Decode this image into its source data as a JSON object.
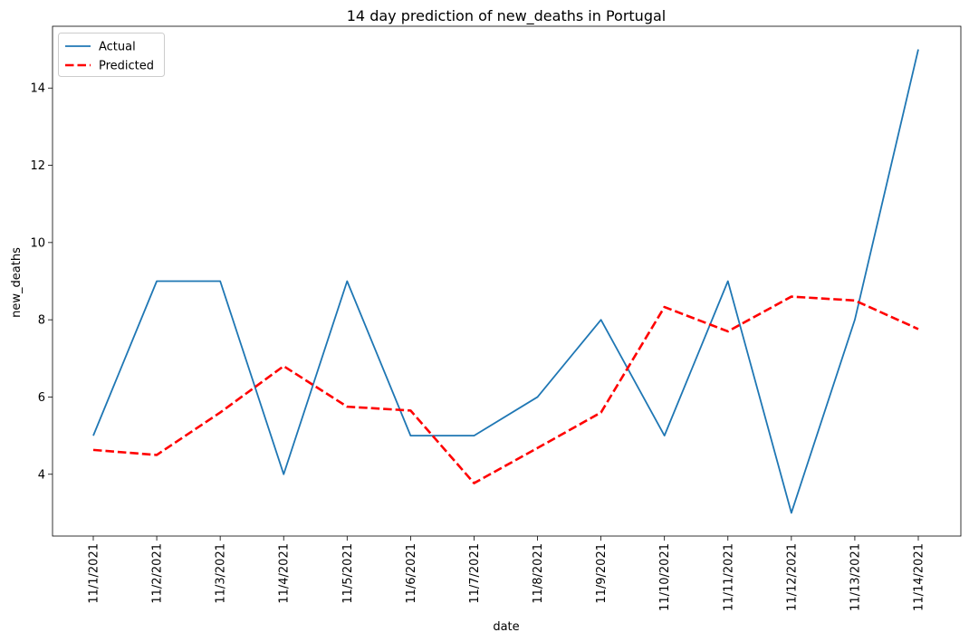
{
  "chart_data": {
    "type": "line",
    "title": "14 day prediction of new_deaths in Portugal",
    "xlabel": "date",
    "ylabel": "new_deaths",
    "categories": [
      "11/1/2021",
      "11/2/2021",
      "11/3/2021",
      "11/4/2021",
      "11/5/2021",
      "11/6/2021",
      "11/7/2021",
      "11/8/2021",
      "11/9/2021",
      "11/10/2021",
      "11/11/2021",
      "11/12/2021",
      "11/13/2021",
      "11/14/2021"
    ],
    "yticks": [
      4,
      6,
      8,
      10,
      12,
      14
    ],
    "ylim": [
      2.4,
      15.6
    ],
    "grid": false,
    "legend_position": "upper-left",
    "series": [
      {
        "name": "Actual",
        "color": "#1f77b4",
        "style": "solid",
        "values": [
          5,
          9,
          9,
          4,
          9,
          5,
          5,
          6,
          8,
          5,
          9,
          3,
          8,
          15
        ]
      },
      {
        "name": "Predicted",
        "color": "#ff0000",
        "style": "dashed",
        "values": [
          4.63,
          4.5,
          5.6,
          6.8,
          5.75,
          5.65,
          3.77,
          4.68,
          5.6,
          8.33,
          7.7,
          8.6,
          8.5,
          7.76
        ]
      }
    ]
  }
}
